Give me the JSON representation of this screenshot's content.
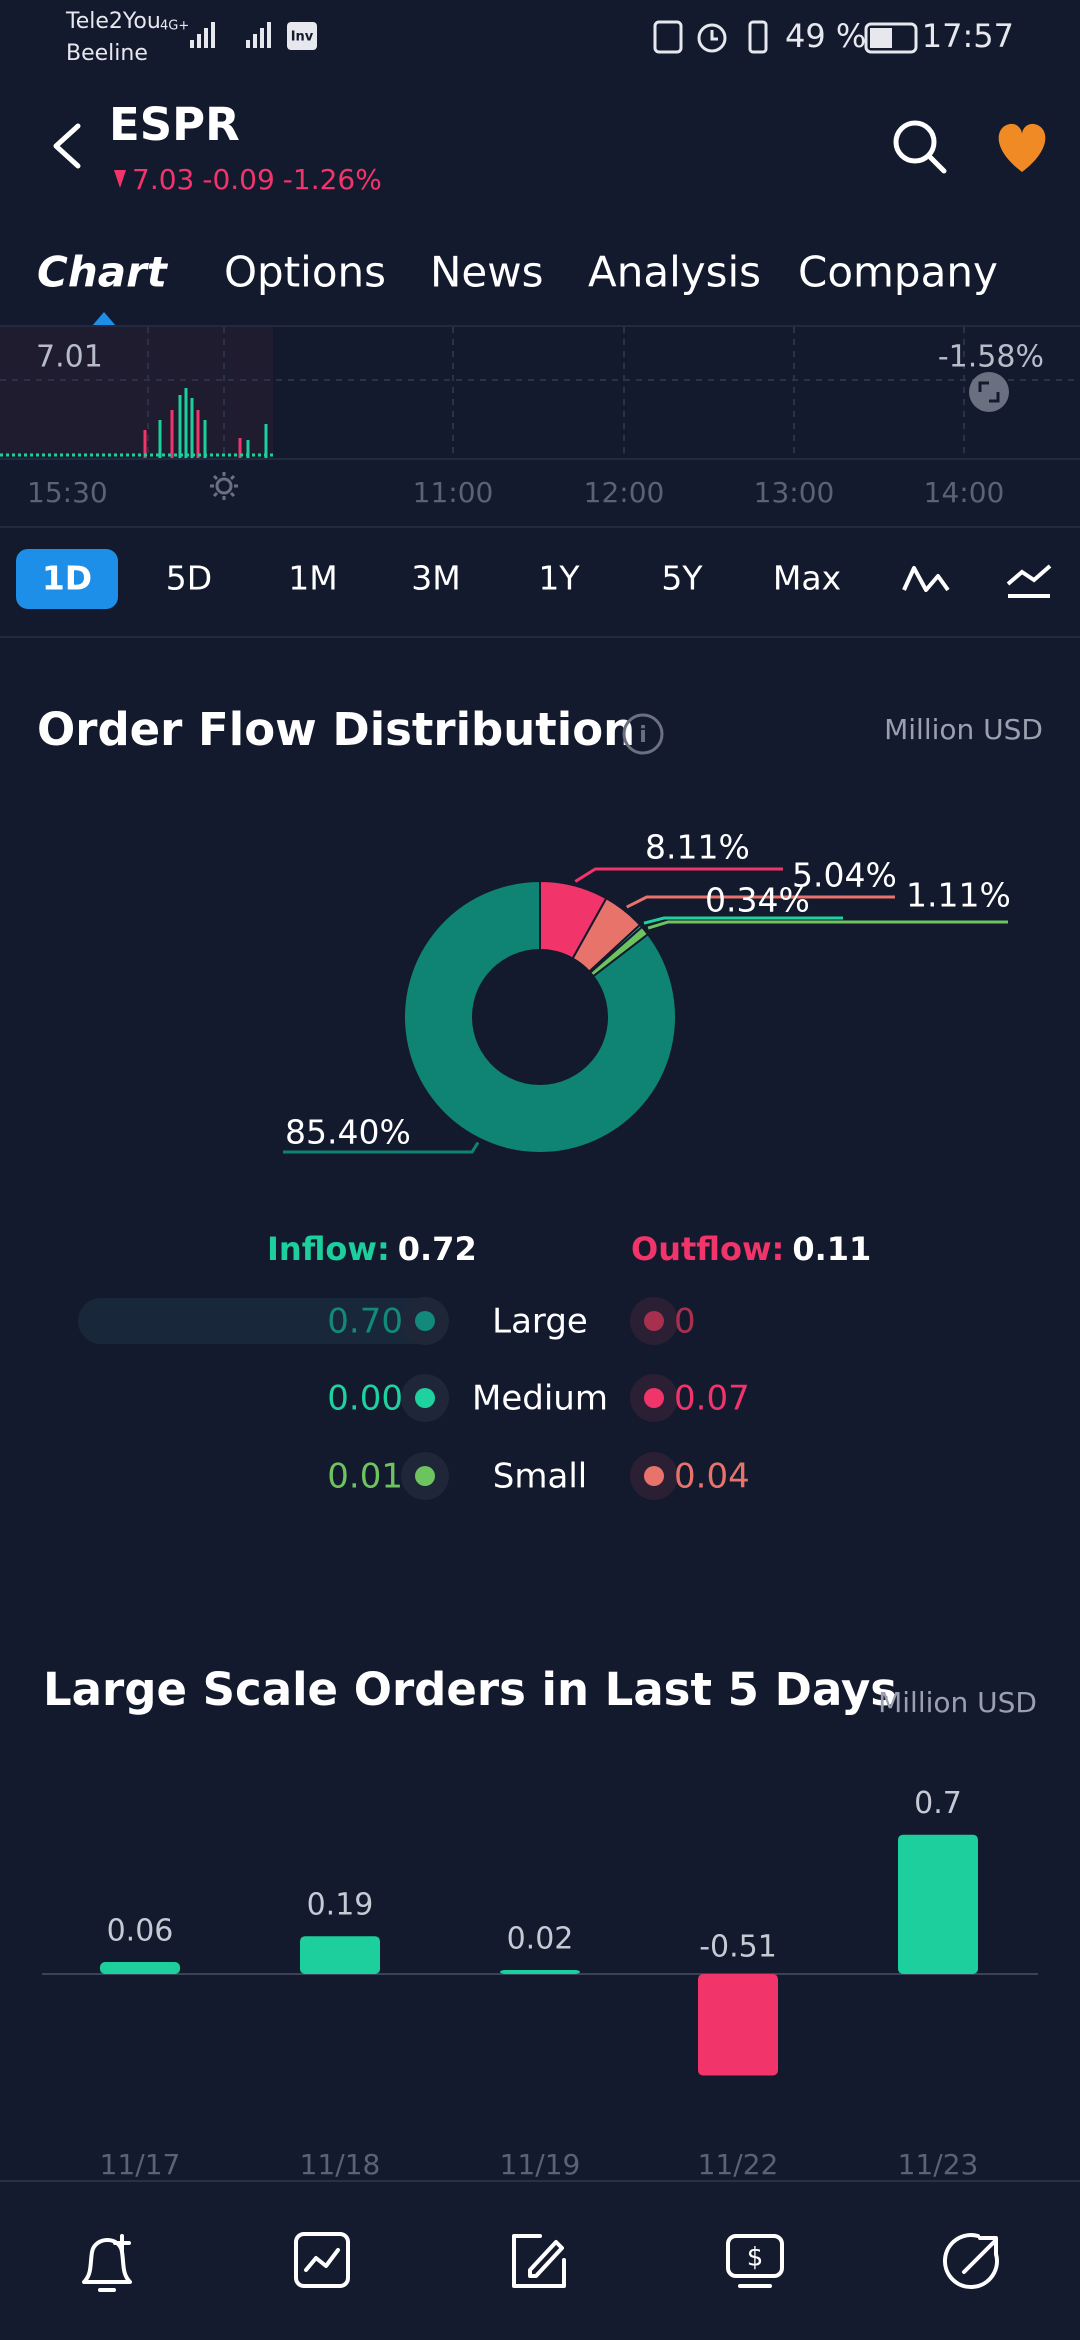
{
  "status_bar": {
    "carrier1": "Tele2You",
    "carrier2": "Beeline",
    "network": "4G+",
    "app_badge": "Inv",
    "battery": "49 %",
    "time": "17:57"
  },
  "header": {
    "ticker": "ESPR",
    "price": "7.03",
    "change": "-0.09",
    "change_pct": "-1.26%"
  },
  "tabs": [
    "Chart",
    "Options",
    "News",
    "Analysis",
    "Company"
  ],
  "mini_chart": {
    "price_label": "7.01",
    "pct_label": "-1.58%",
    "times": [
      "15:30",
      "11:00",
      "12:00",
      "13:00",
      "14:00"
    ]
  },
  "ranges": [
    "1D",
    "5D",
    "1M",
    "3M",
    "1Y",
    "5Y",
    "Max"
  ],
  "order_flow": {
    "title": "Order Flow Distribution",
    "unit": "Million USD",
    "donut": {
      "type": "pie",
      "values": [
        8.11,
        5.04,
        0.34,
        1.11,
        85.4
      ],
      "value_labels": [
        "8.11%",
        "5.04%",
        "0.34%",
        "1.11%",
        "85.40%"
      ],
      "colors": [
        "#f1346a",
        "#e8736b",
        "#1ed19f",
        "#6dc35e",
        "#0f8474"
      ]
    },
    "inflow_label": "Inflow:",
    "inflow": "0.72",
    "outflow_label": "Outflow:",
    "outflow": "0.11",
    "rows": [
      {
        "name": "Large",
        "inflow": "0.70",
        "outflow": "0",
        "inflow_color": "#12897a",
        "outflow_color": "#a8304f"
      },
      {
        "name": "Medium",
        "inflow": "0.00",
        "outflow": "0.07",
        "inflow_color": "#1ed19f",
        "outflow_color": "#f1346a"
      },
      {
        "name": "Small",
        "inflow": "0.01",
        "outflow": "0.04",
        "inflow_color": "#6dc35e",
        "outflow_color": "#e8736b"
      }
    ]
  },
  "large_orders": {
    "title": "Large Scale Orders in Last 5 Days",
    "unit": "Million USD",
    "chart": {
      "type": "bar",
      "categories": [
        "11/17",
        "11/18",
        "11/19",
        "11/22",
        "11/23"
      ],
      "values": [
        0.06,
        0.19,
        0.02,
        -0.51,
        0.7
      ],
      "positive_color": "#1ccf9c",
      "negative_color": "#f1346a"
    }
  }
}
